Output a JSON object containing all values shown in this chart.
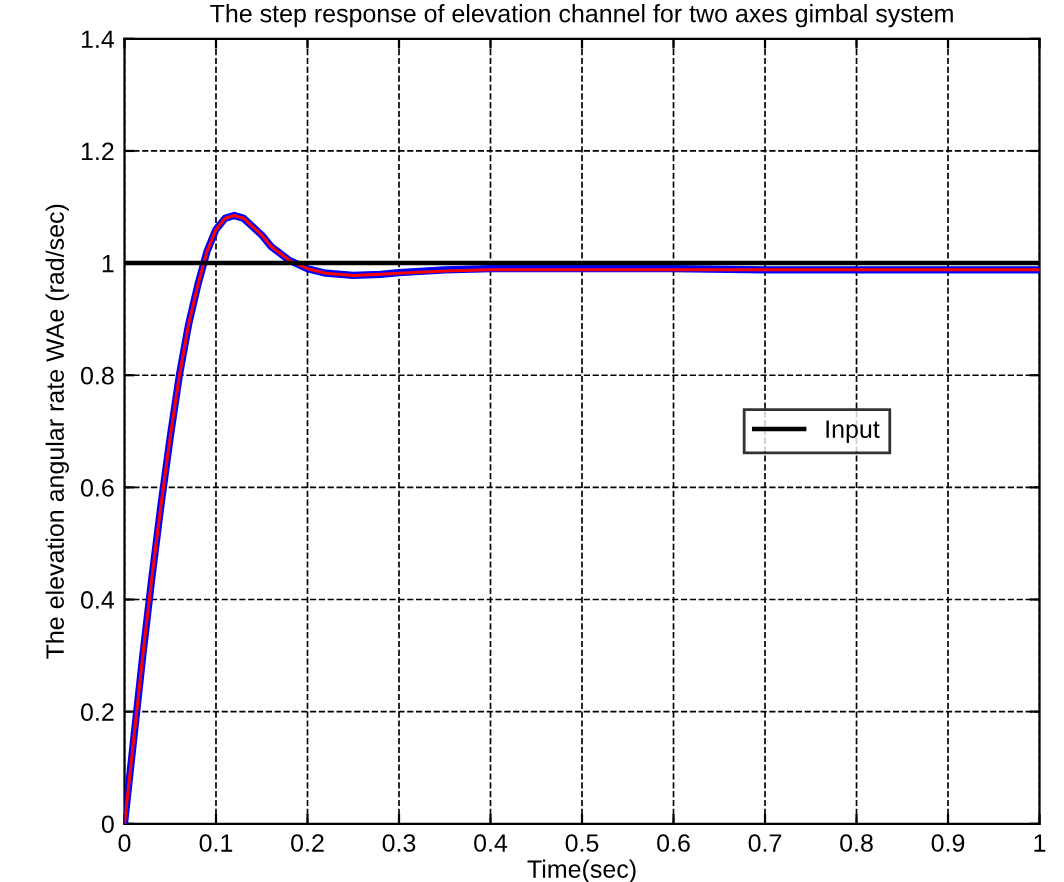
{
  "chart_data": {
    "type": "line",
    "title": "The step response of elevation channel for two axes gimbal system",
    "xlabel": "Time(sec)",
    "ylabel": "The elevation angular rate WAe (rad/sec)",
    "xlim": [
      0,
      1
    ],
    "xticks": [
      0,
      0.1,
      0.2,
      0.3,
      0.4,
      0.5,
      0.6,
      0.7,
      0.8,
      0.9,
      1
    ],
    "ylim": [
      0,
      1.4
    ],
    "yticks": [
      0,
      0.2,
      0.4,
      0.6,
      0.8,
      1,
      1.2,
      1.4
    ],
    "grid": true,
    "legend": "right",
    "line_style": "solid",
    "x": [
      0,
      0.01,
      0.02,
      0.03,
      0.04,
      0.05,
      0.06,
      0.07,
      0.08,
      0.09,
      0.1,
      0.11,
      0.12,
      0.13,
      0.14,
      0.15,
      0.16,
      0.18,
      0.2,
      0.22,
      0.25,
      0.28,
      0.3,
      0.35,
      0.4,
      0.5,
      0.6,
      0.7,
      0.8,
      0.9,
      1.0
    ],
    "series": [
      {
        "name": "Input",
        "color": "#000000",
        "x": [
          0,
          1
        ],
        "values": [
          1,
          1
        ]
      },
      {
        "color": "#0000ff",
        "values": [
          0,
          0.15,
          0.3,
          0.44,
          0.57,
          0.69,
          0.8,
          0.89,
          0.96,
          1.02,
          1.06,
          1.08,
          1.085,
          1.08,
          1.065,
          1.05,
          1.03,
          1.005,
          0.99,
          0.982,
          0.978,
          0.98,
          0.983,
          0.988,
          0.99,
          0.99,
          0.99,
          0.988,
          0.988,
          0.988,
          0.988
        ]
      },
      {
        "color": "#ff0000",
        "values": [
          0,
          0.15,
          0.3,
          0.44,
          0.57,
          0.69,
          0.8,
          0.89,
          0.96,
          1.02,
          1.06,
          1.08,
          1.085,
          1.08,
          1.065,
          1.05,
          1.03,
          1.005,
          0.99,
          0.982,
          0.978,
          0.98,
          0.982,
          0.986,
          0.988,
          0.988,
          0.988,
          0.988,
          0.988,
          0.988,
          0.988
        ]
      }
    ]
  }
}
